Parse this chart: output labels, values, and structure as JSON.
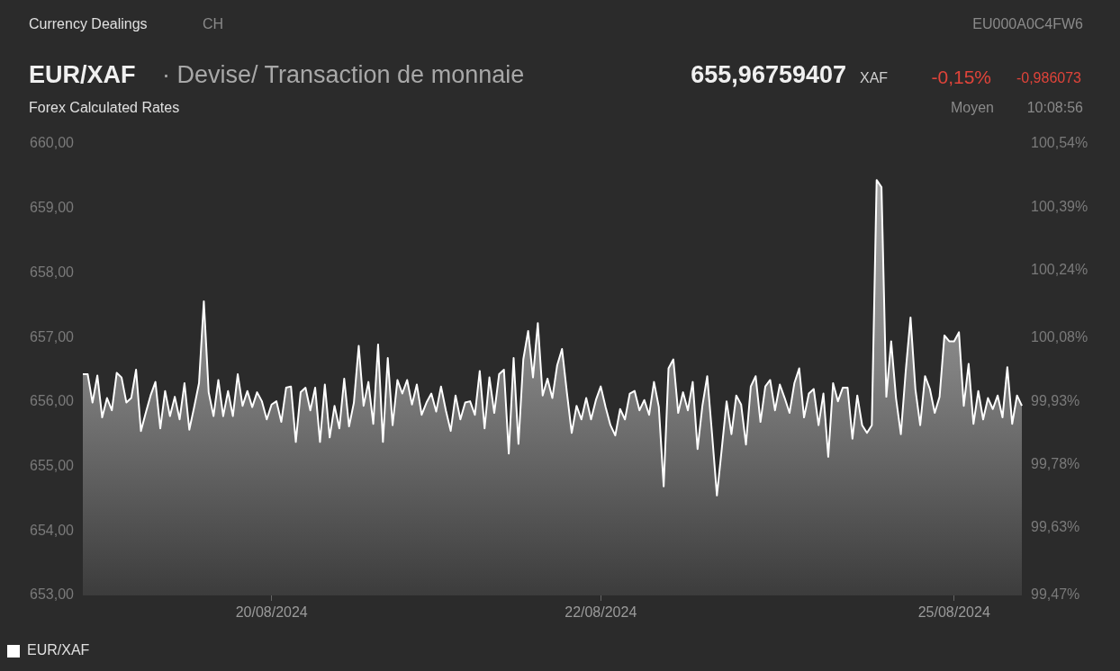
{
  "chart_data": {
    "type": "area",
    "title": "EUR/XAF",
    "subtitle": "· Devise/ Transaction de monnaie",
    "annotations": [
      "Currency Dealings",
      "CH",
      "EU000A0C4FW6",
      "655,96759407",
      "XAF",
      "-0,15%",
      "-0,986073",
      "Forex Calculated Rates",
      "Moyen",
      "10:08:56"
    ],
    "categories": [
      null,
      null,
      null,
      null,
      null,
      null,
      null,
      null,
      null,
      null,
      null,
      null,
      null,
      null,
      null,
      null,
      null,
      null,
      null,
      null,
      null,
      null,
      null,
      null,
      null,
      null,
      null,
      null,
      null,
      null,
      null,
      null,
      null,
      null,
      null,
      null,
      null,
      null,
      null,
      "20/08/2024",
      null,
      null,
      null,
      null,
      null,
      null,
      null,
      null,
      null,
      null,
      null,
      null,
      null,
      null,
      null,
      null,
      null,
      null,
      null,
      null,
      null,
      null,
      null,
      null,
      null,
      null,
      null,
      null,
      null,
      null,
      null,
      null,
      null,
      null,
      null,
      null,
      null,
      null,
      null,
      null,
      null,
      null,
      null,
      null,
      null,
      null,
      null,
      null,
      null,
      null,
      null,
      null,
      null,
      null,
      null,
      null,
      null,
      null,
      null,
      null,
      null,
      null,
      null,
      null,
      null,
      null,
      null,
      "22/08/2024",
      null,
      null,
      null,
      null,
      null,
      null,
      null,
      null,
      null,
      null,
      null,
      null,
      null,
      null,
      null,
      null,
      null,
      null,
      null,
      null,
      null,
      null,
      null,
      null,
      null,
      null,
      null,
      null,
      null,
      null,
      null,
      null,
      null,
      null,
      null,
      null,
      null,
      null,
      null,
      null,
      null,
      null,
      null,
      null,
      null,
      null,
      null,
      null,
      null,
      null,
      null,
      null,
      null,
      null,
      null,
      null,
      null,
      null,
      null,
      null,
      null,
      null,
      null,
      null,
      null,
      null,
      null,
      null,
      null,
      null,
      null,
      null,
      "25/08/2024",
      null,
      null,
      null,
      null,
      null,
      null,
      null,
      null,
      null,
      null,
      null,
      null,
      null,
      null
    ],
    "series": [
      {
        "name": "EUR/XAF",
        "color": "#ffffff",
        "values": [
          656.43,
          656.43,
          655.99,
          656.41,
          655.76,
          656.06,
          655.87,
          656.45,
          656.38,
          655.99,
          656.06,
          656.5,
          655.55,
          655.83,
          656.1,
          656.31,
          655.59,
          656.17,
          655.78,
          656.08,
          655.73,
          656.29,
          655.57,
          655.92,
          656.29,
          657.56,
          656.15,
          655.78,
          656.34,
          655.78,
          656.17,
          655.78,
          656.43,
          655.94,
          656.17,
          655.92,
          656.15,
          656.01,
          655.73,
          655.96,
          656.01,
          655.69,
          656.22,
          656.24,
          655.38,
          656.15,
          656.22,
          655.87,
          656.22,
          655.38,
          656.27,
          655.45,
          655.94,
          655.59,
          656.36,
          655.62,
          655.99,
          656.87,
          655.94,
          656.31,
          655.66,
          656.89,
          655.38,
          656.68,
          655.64,
          656.34,
          656.13,
          656.34,
          655.96,
          656.27,
          655.8,
          655.99,
          656.13,
          655.85,
          656.24,
          655.87,
          655.55,
          656.1,
          655.73,
          655.99,
          656.01,
          655.8,
          656.48,
          655.59,
          656.38,
          655.83,
          656.43,
          656.5,
          655.2,
          656.68,
          655.35,
          656.66,
          657.1,
          656.38,
          657.22,
          656.1,
          656.36,
          656.06,
          656.57,
          656.82,
          656.15,
          655.52,
          655.94,
          655.73,
          656.06,
          655.73,
          656.03,
          656.24,
          655.92,
          655.64,
          655.48,
          655.89,
          655.73,
          656.13,
          656.17,
          655.87,
          656.03,
          655.8,
          656.31,
          655.92,
          654.69,
          656.52,
          656.66,
          655.83,
          656.15,
          655.87,
          656.31,
          655.27,
          655.94,
          656.4,
          655.5,
          654.55,
          655.27,
          656.01,
          655.5,
          656.1,
          655.96,
          655.34,
          656.24,
          656.4,
          655.69,
          656.24,
          656.34,
          655.87,
          656.27,
          656.06,
          655.83,
          656.29,
          656.52,
          655.76,
          656.13,
          656.2,
          655.64,
          656.13,
          655.15,
          656.29,
          656.01,
          656.22,
          656.22,
          655.43,
          656.1,
          655.64,
          655.52,
          655.64,
          659.44,
          659.33,
          656.08,
          656.94,
          656.06,
          655.5,
          656.47,
          657.31,
          656.2,
          655.64,
          656.4,
          656.2,
          655.83,
          656.08,
          657.03,
          656.94,
          656.94,
          657.08,
          655.94,
          656.59,
          655.66,
          656.17,
          655.73,
          656.06,
          655.89,
          656.1,
          655.76,
          656.54,
          655.66,
          656.1,
          655.94
        ]
      }
    ],
    "ylim": [
      653,
      660
    ],
    "yticks": [
      {
        "value": 653,
        "label": "653,00"
      },
      {
        "value": 654,
        "label": "654,00"
      },
      {
        "value": 655,
        "label": "655,00"
      },
      {
        "value": 656,
        "label": "656,00"
      },
      {
        "value": 657,
        "label": "657,00"
      },
      {
        "value": 658,
        "label": "658,00"
      },
      {
        "value": 659,
        "label": "659,00"
      },
      {
        "value": 660,
        "label": "660,00"
      }
    ],
    "y2lim": [
      99.47,
      100.54
    ],
    "y2ticks": [
      {
        "value": 99.47,
        "label": "99,47%"
      },
      {
        "value": 99.63,
        "label": "99,63%"
      },
      {
        "value": 99.78,
        "label": "99,78%"
      },
      {
        "value": 99.93,
        "label": "99,93%"
      },
      {
        "value": 100.08,
        "label": "100,08%"
      },
      {
        "value": 100.24,
        "label": "100,24%"
      },
      {
        "value": 100.39,
        "label": "100,39%"
      },
      {
        "value": 100.54,
        "label": "100,54%"
      }
    ],
    "legend": "bottom left",
    "marker": "none",
    "line_style": "solid"
  }
}
